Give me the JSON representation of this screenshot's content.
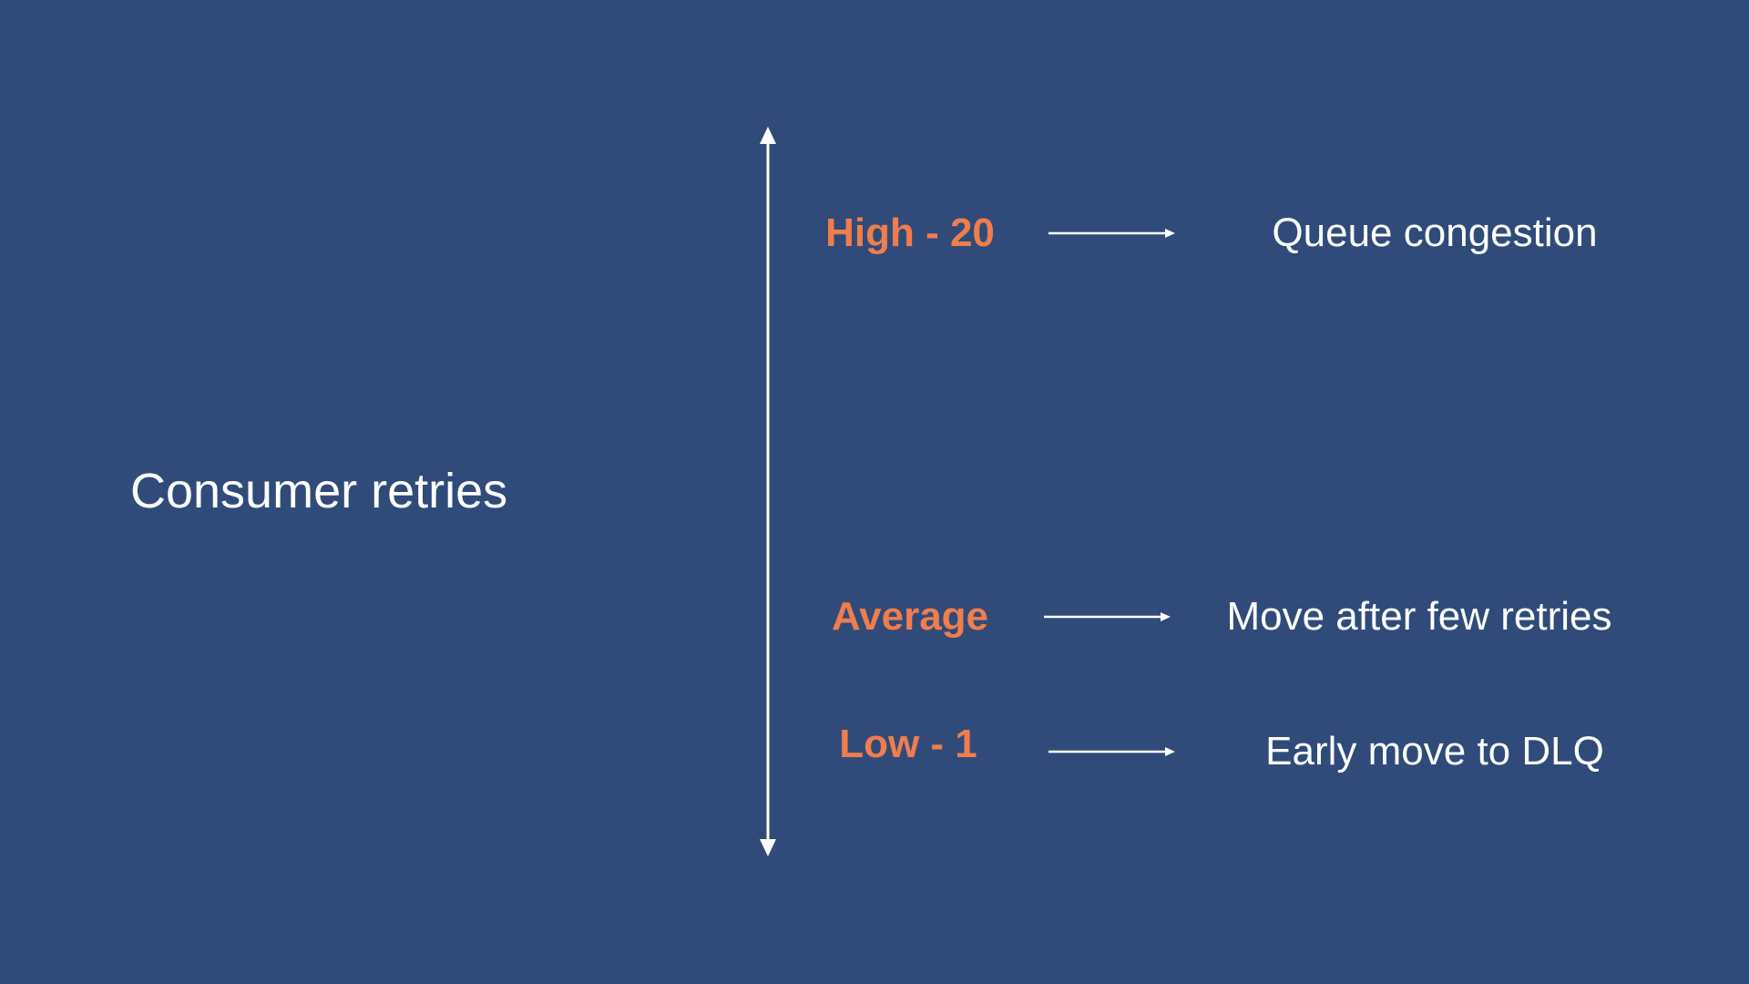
{
  "title": "Consumer retries",
  "colors": {
    "background": "#304b79",
    "level_text": "#f07d4e",
    "text": "#ffffff",
    "arrow": "#ffffff"
  },
  "scale": {
    "high_label": "High - 20",
    "average_label": "Average",
    "low_label": "Low - 1"
  },
  "outcomes": {
    "high": "Queue congestion",
    "average": "Move after few retries",
    "low": "Early move to DLQ"
  }
}
